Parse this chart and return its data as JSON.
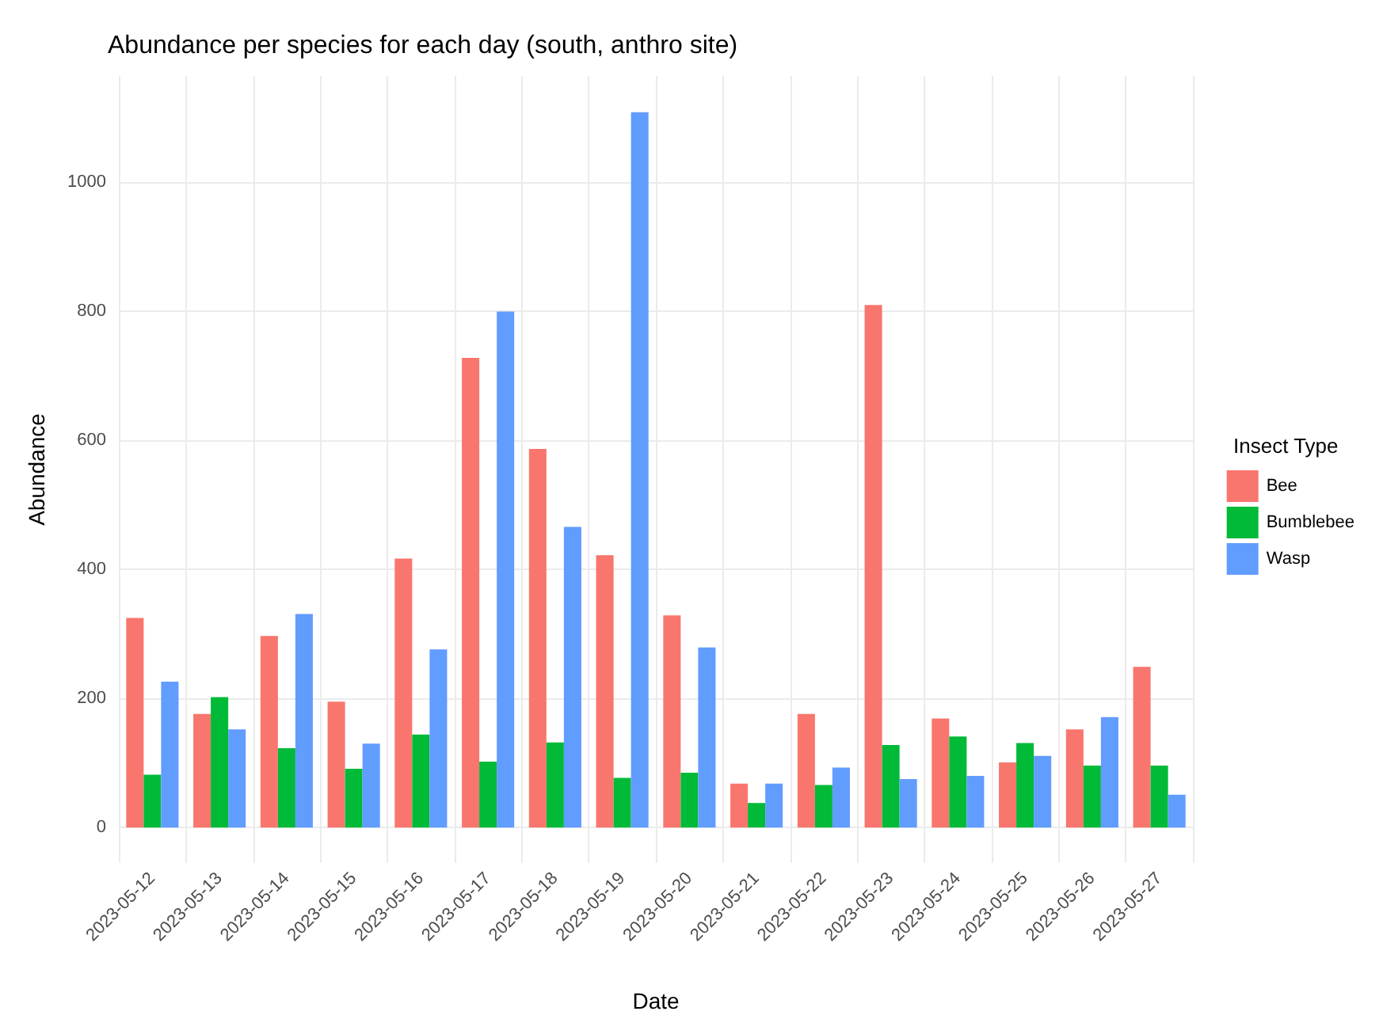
{
  "chart_data": {
    "type": "bar",
    "title": "Abundance per species for each day (south, anthro site)",
    "xlabel": "Date",
    "ylabel": "Abundance",
    "legend_title": "Insect Type",
    "categories": [
      "2023-05-12",
      "2023-05-13",
      "2023-05-14",
      "2023-05-15",
      "2023-05-16",
      "2023-05-17",
      "2023-05-18",
      "2023-05-19",
      "2023-05-20",
      "2023-05-21",
      "2023-05-22",
      "2023-05-23",
      "2023-05-24",
      "2023-05-25",
      "2023-05-26",
      "2023-05-27"
    ],
    "series": [
      {
        "name": "Bee",
        "color": "#f8766d",
        "values": [
          325,
          176,
          297,
          195,
          417,
          728,
          587,
          422,
          329,
          68,
          176,
          810,
          169,
          101,
          152,
          249
        ]
      },
      {
        "name": "Bumblebee",
        "color": "#00ba38",
        "values": [
          82,
          202,
          123,
          91,
          144,
          102,
          132,
          77,
          85,
          38,
          66,
          128,
          141,
          131,
          96,
          96
        ]
      },
      {
        "name": "Wasp",
        "color": "#619cff",
        "values": [
          226,
          152,
          331,
          130,
          276,
          800,
          466,
          1109,
          279,
          68,
          93,
          75,
          80,
          111,
          171,
          51
        ]
      }
    ],
    "ylim": [
      -55,
      1165
    ],
    "yticks": [
      0,
      200,
      400,
      600,
      800,
      1000
    ],
    "grid": true,
    "legend": "right"
  }
}
